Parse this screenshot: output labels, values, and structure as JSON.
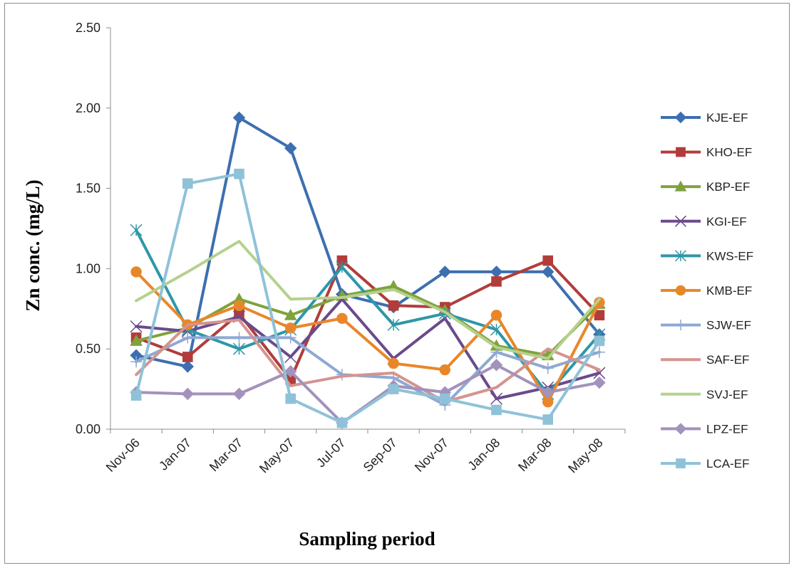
{
  "chart_data": {
    "type": "line",
    "title": "",
    "xlabel": "Sampling period",
    "ylabel": "Zn conc. (mg/L)",
    "ylim": [
      0,
      2.5
    ],
    "yticks": [
      "0.00",
      "0.50",
      "1.00",
      "1.50",
      "2.00",
      "2.50"
    ],
    "categories": [
      "Nov-06",
      "Jan-07",
      "Mar-07",
      "May-07",
      "Jul-07",
      "Sep-07",
      "Nov-07",
      "Jan-08",
      "Mar-08",
      "May-08"
    ],
    "grid": false,
    "legend_position": "right",
    "series": [
      {
        "name": "KJE-EF",
        "color": "#3D6FB0",
        "marker": "diamond",
        "values": [
          0.46,
          0.39,
          1.94,
          1.75,
          0.84,
          0.76,
          0.98,
          0.98,
          0.98,
          0.59
        ]
      },
      {
        "name": "KHO-EF",
        "color": "#B23C3A",
        "marker": "square",
        "values": [
          0.57,
          0.45,
          0.72,
          0.31,
          1.05,
          0.77,
          0.76,
          0.92,
          1.05,
          0.71
        ]
      },
      {
        "name": "KBP-EF",
        "color": "#7FA23C",
        "marker": "triangle",
        "values": [
          0.55,
          0.63,
          0.81,
          0.71,
          0.83,
          0.89,
          0.74,
          0.52,
          0.46,
          0.78
        ]
      },
      {
        "name": "KGI-EF",
        "color": "#6A4A8C",
        "marker": "x",
        "values": [
          0.64,
          0.61,
          0.7,
          0.45,
          0.81,
          0.44,
          0.69,
          0.19,
          0.26,
          0.35
        ]
      },
      {
        "name": "KWS-EF",
        "color": "#2E97A8",
        "marker": "star",
        "values": [
          1.24,
          0.62,
          0.5,
          0.62,
          1.01,
          0.65,
          0.72,
          0.62,
          0.22,
          0.59
        ]
      },
      {
        "name": "KMB-EF",
        "color": "#E8872A",
        "marker": "circle",
        "values": [
          0.98,
          0.65,
          0.77,
          0.63,
          0.69,
          0.41,
          0.37,
          0.71,
          0.17,
          0.79
        ]
      },
      {
        "name": "SJW-EF",
        "color": "#8EA9D4",
        "marker": "plus",
        "values": [
          0.42,
          0.57,
          0.57,
          0.57,
          0.34,
          0.32,
          0.15,
          0.48,
          0.38,
          0.48
        ]
      },
      {
        "name": "SAF-EF",
        "color": "#D4948F",
        "marker": "none",
        "values": [
          0.34,
          0.65,
          0.68,
          0.27,
          0.33,
          0.35,
          0.17,
          0.26,
          0.5,
          0.37
        ]
      },
      {
        "name": "SVJ-EF",
        "color": "#B5D18E",
        "marker": "none",
        "values": [
          0.8,
          0.98,
          1.17,
          0.81,
          0.82,
          0.87,
          0.73,
          0.51,
          0.44,
          0.81
        ]
      },
      {
        "name": "LPZ-EF",
        "color": "#A392BC",
        "marker": "diamond",
        "values": [
          0.23,
          0.22,
          0.22,
          0.36,
          0.04,
          0.27,
          0.23,
          0.4,
          0.23,
          0.29
        ]
      },
      {
        "name": "LCA-EF",
        "color": "#8FC2D8",
        "marker": "square",
        "values": [
          0.21,
          1.53,
          1.59,
          0.19,
          0.04,
          0.25,
          0.19,
          0.12,
          0.06,
          0.55
        ]
      }
    ]
  }
}
